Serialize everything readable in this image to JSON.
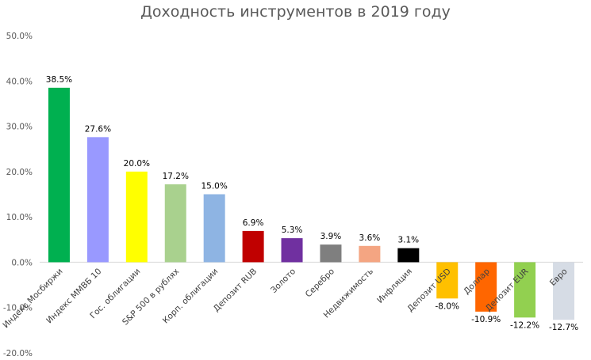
{
  "chart_data": {
    "type": "bar",
    "title": "Доходность инструментов в 2019 году",
    "xlabel": "",
    "ylabel": "",
    "ylim": [
      -0.2,
      0.5
    ],
    "yticks": [
      -0.2,
      -0.1,
      0.0,
      0.1,
      0.2,
      0.3,
      0.4,
      0.5
    ],
    "ytick_labels": [
      "-20.0%",
      "-10.0%",
      "0.0%",
      "10.0%",
      "20.0%",
      "30.0%",
      "40.0%",
      "50.0%"
    ],
    "grid": false,
    "legend": "none",
    "categories": [
      "Индекс Мосбиржи",
      "Индекс ММВБ 10",
      "Гос. облигации",
      "S&P 500 в рублях",
      "Корп. облигации",
      "Депозит RUB",
      "Золото",
      "Серебро",
      "Недвижимость",
      "Инфляция",
      "Депозит USD",
      "Доллар",
      "Депозит EUR",
      "Евро"
    ],
    "values": [
      0.385,
      0.276,
      0.2,
      0.172,
      0.15,
      0.069,
      0.053,
      0.039,
      0.036,
      0.031,
      -0.08,
      -0.109,
      -0.122,
      -0.127
    ],
    "value_labels": [
      "38.5%",
      "27.6%",
      "20.0%",
      "17.2%",
      "15.0%",
      "6.9%",
      "5.3%",
      "3.9%",
      "3.6%",
      "3.1%",
      "-8.0%",
      "-10.9%",
      "-12.2%",
      "-12.7%"
    ],
    "colors": [
      "#00b050",
      "#9999ff",
      "#ffff00",
      "#a9d18e",
      "#8eb4e3",
      "#c00000",
      "#7030a0",
      "#7f7f7f",
      "#f4a582",
      "#000000",
      "#ffc000",
      "#ff6600",
      "#92d050",
      "#d6dce5"
    ]
  }
}
